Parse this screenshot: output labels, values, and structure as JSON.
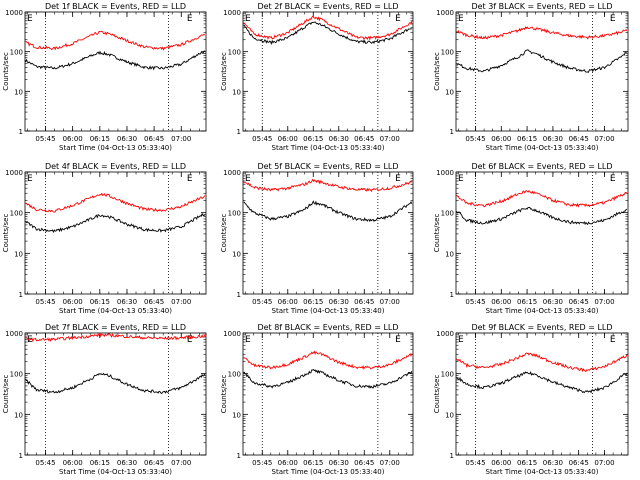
{
  "figure": {
    "background": "#ffffff",
    "event_color": "#000000",
    "lld_color": "#ff0000"
  },
  "chart_data": [
    {
      "type": "line",
      "title": "Det 1f BLACK = Events, RED = LLD",
      "xlabel": "Start Time (04-Oct-13 05:33:40)",
      "ylabel": "Counts/sec",
      "yscale": "log",
      "ylim": [
        1,
        1000
      ],
      "xlim": [
        "05:33:40",
        "07:13:40"
      ],
      "xticks": [
        "05:45",
        "06:00",
        "06:15",
        "06:30",
        "06:45",
        "07:00"
      ],
      "yticks": [
        "1",
        "10",
        "100",
        "1000"
      ],
      "vlines": [
        "05:45",
        "06:53"
      ],
      "markers": [
        {
          "label": "E",
          "x": "05:33:40"
        },
        {
          "label": "E",
          "x": "07:02"
        }
      ],
      "legend": "none",
      "grid": false,
      "x": [
        "05:34",
        "05:40",
        "05:50",
        "06:00",
        "06:10",
        "06:15",
        "06:20",
        "06:30",
        "06:40",
        "06:50",
        "07:00",
        "07:10",
        "07:13"
      ],
      "series": [
        {
          "color": "#000000",
          "values": [
            60,
            42,
            38,
            50,
            78,
            95,
            85,
            55,
            40,
            38,
            48,
            90,
            100
          ]
        },
        {
          "color": "#ff0000",
          "values": [
            170,
            130,
            120,
            160,
            250,
            310,
            280,
            190,
            130,
            120,
            150,
            240,
            270
          ]
        }
      ]
    },
    {
      "type": "line",
      "title": "Det 2f BLACK = Events, RED = LLD",
      "xlabel": "Start Time (04-Oct-13 05:33:40)",
      "ylabel": "Counts/sec",
      "yscale": "log",
      "ylim": [
        1,
        1000
      ],
      "xlim": [
        "05:33:40",
        "07:13:40"
      ],
      "xticks": [
        "05:45",
        "06:00",
        "06:15",
        "06:30",
        "06:45",
        "07:00"
      ],
      "yticks": [
        "1",
        "10",
        "100",
        "1000"
      ],
      "vlines": [
        "05:45",
        "06:53"
      ],
      "markers": [
        {
          "label": "E",
          "x": "05:33:40"
        },
        {
          "label": "E",
          "x": "07:02"
        }
      ],
      "legend": "none",
      "grid": false,
      "x": [
        "05:34",
        "05:40",
        "05:50",
        "06:00",
        "06:10",
        "06:15",
        "06:20",
        "06:30",
        "06:40",
        "06:50",
        "07:00",
        "07:10",
        "07:13"
      ],
      "series": [
        {
          "color": "#000000",
          "values": [
            450,
            220,
            170,
            220,
            420,
            560,
            470,
            280,
            180,
            170,
            210,
            350,
            400
          ]
        },
        {
          "color": "#ff0000",
          "values": [
            550,
            280,
            220,
            300,
            560,
            760,
            640,
            380,
            230,
            220,
            270,
            470,
            560
          ]
        }
      ]
    },
    {
      "type": "line",
      "title": "Det 3f BLACK = Events, RED = LLD",
      "xlabel": "Start Time (04-Oct-13 05:33:40)",
      "ylabel": "Counts/sec",
      "yscale": "log",
      "ylim": [
        1,
        1000
      ],
      "xlim": [
        "05:33:40",
        "07:13:40"
      ],
      "xticks": [
        "05:45",
        "06:00",
        "06:15",
        "06:30",
        "06:45",
        "07:00"
      ],
      "yticks": [
        "1",
        "10",
        "100",
        "1000"
      ],
      "vlines": [
        "05:45",
        "06:53"
      ],
      "markers": [
        {
          "label": "E",
          "x": "05:33:40"
        },
        {
          "label": "E",
          "x": "07:02"
        }
      ],
      "legend": "none",
      "grid": false,
      "x": [
        "05:34",
        "05:40",
        "05:50",
        "06:00",
        "06:10",
        "06:15",
        "06:20",
        "06:30",
        "06:40",
        "06:50",
        "07:00",
        "07:10",
        "07:13"
      ],
      "series": [
        {
          "color": "#000000",
          "values": [
            50,
            38,
            32,
            45,
            75,
            105,
            90,
            55,
            38,
            32,
            40,
            75,
            100
          ]
        },
        {
          "color": "#ff0000",
          "values": [
            330,
            260,
            220,
            260,
            340,
            420,
            380,
            300,
            250,
            230,
            250,
            310,
            350
          ]
        }
      ]
    },
    {
      "type": "line",
      "title": "Det 4f BLACK = Events, RED = LLD",
      "xlabel": "Start Time (04-Oct-13 05:33:40)",
      "ylabel": "Counts/sec",
      "yscale": "log",
      "ylim": [
        1,
        1000
      ],
      "xlim": [
        "05:33:40",
        "07:13:40"
      ],
      "xticks": [
        "05:45",
        "06:00",
        "06:15",
        "06:30",
        "06:45",
        "07:00"
      ],
      "yticks": [
        "1",
        "10",
        "100",
        "1000"
      ],
      "vlines": [
        "05:45",
        "06:53"
      ],
      "markers": [
        {
          "label": "E",
          "x": "05:33:40"
        },
        {
          "label": "E",
          "x": "07:02"
        }
      ],
      "legend": "none",
      "grid": false,
      "x": [
        "05:34",
        "05:40",
        "05:50",
        "06:00",
        "06:10",
        "06:15",
        "06:20",
        "06:30",
        "06:40",
        "06:50",
        "07:00",
        "07:10",
        "07:13"
      ],
      "series": [
        {
          "color": "#000000",
          "values": [
            60,
            40,
            35,
            45,
            70,
            88,
            80,
            52,
            38,
            36,
            45,
            80,
            95
          ]
        },
        {
          "color": "#ff0000",
          "values": [
            170,
            120,
            110,
            150,
            230,
            290,
            260,
            170,
            120,
            115,
            140,
            220,
            250
          ]
        }
      ]
    },
    {
      "type": "line",
      "title": "Det 5f BLACK = Events, RED = LLD",
      "xlabel": "Start Time (04-Oct-13 05:33:40)",
      "ylabel": "Counts/sec",
      "yscale": "log",
      "ylim": [
        1,
        1000
      ],
      "xlim": [
        "05:33:40",
        "07:13:40"
      ],
      "xticks": [
        "05:45",
        "06:00",
        "06:15",
        "06:30",
        "06:45",
        "07:00"
      ],
      "yticks": [
        "1",
        "10",
        "100",
        "1000"
      ],
      "vlines": [
        "05:45",
        "06:53"
      ],
      "markers": [
        {
          "label": "E",
          "x": "05:33:40"
        },
        {
          "label": "E",
          "x": "07:02"
        }
      ],
      "legend": "none",
      "grid": false,
      "x": [
        "05:34",
        "05:40",
        "05:50",
        "06:00",
        "06:10",
        "06:15",
        "06:20",
        "06:30",
        "06:40",
        "06:50",
        "07:00",
        "07:10",
        "07:13"
      ],
      "series": [
        {
          "color": "#000000",
          "values": [
            180,
            100,
            70,
            80,
            120,
            180,
            160,
            100,
            70,
            65,
            80,
            150,
            180
          ]
        },
        {
          "color": "#ff0000",
          "values": [
            600,
            420,
            360,
            400,
            500,
            620,
            560,
            430,
            370,
            360,
            400,
            520,
            580
          ]
        }
      ]
    },
    {
      "type": "line",
      "title": "Det 6f BLACK = Events, RED = LLD",
      "xlabel": "Start Time (04-Oct-13 05:33:40)",
      "ylabel": "Counts/sec",
      "yscale": "log",
      "ylim": [
        1,
        1000
      ],
      "xlim": [
        "05:33:40",
        "07:13:40"
      ],
      "xticks": [
        "05:45",
        "06:00",
        "06:15",
        "06:30",
        "06:45",
        "07:00"
      ],
      "yticks": [
        "1",
        "10",
        "100",
        "1000"
      ],
      "vlines": [
        "05:45",
        "06:53"
      ],
      "markers": [
        {
          "label": "E",
          "x": "05:33:40"
        },
        {
          "label": "E",
          "x": "07:02"
        }
      ],
      "legend": "none",
      "grid": false,
      "x": [
        "05:34",
        "05:40",
        "05:50",
        "06:00",
        "06:10",
        "06:15",
        "06:20",
        "06:30",
        "06:40",
        "06:50",
        "07:00",
        "07:10",
        "07:13"
      ],
      "series": [
        {
          "color": "#000000",
          "values": [
            110,
            65,
            55,
            70,
            110,
            130,
            115,
            75,
            58,
            55,
            65,
            105,
            120
          ]
        },
        {
          "color": "#ff0000",
          "values": [
            260,
            170,
            150,
            190,
            290,
            340,
            300,
            200,
            155,
            150,
            175,
            270,
            300
          ]
        }
      ]
    },
    {
      "type": "line",
      "title": "Det 7f BLACK = Events, RED = LLD",
      "xlabel": "Start Time (04-Oct-13 05:33:40)",
      "ylabel": "Counts/sec",
      "yscale": "log",
      "ylim": [
        1,
        1000
      ],
      "xlim": [
        "05:33:40",
        "07:13:40"
      ],
      "xticks": [
        "05:45",
        "06:00",
        "06:15",
        "06:30",
        "06:45",
        "07:00"
      ],
      "yticks": [
        "1",
        "10",
        "100",
        "1000"
      ],
      "vlines": [
        "05:45",
        "06:53"
      ],
      "markers": [
        {
          "label": "E",
          "x": "05:33:40"
        },
        {
          "label": "E",
          "x": "07:02"
        }
      ],
      "legend": "none",
      "grid": false,
      "x": [
        "05:34",
        "05:40",
        "05:50",
        "06:00",
        "06:10",
        "06:15",
        "06:20",
        "06:30",
        "06:40",
        "06:50",
        "07:00",
        "07:10",
        "07:13"
      ],
      "series": [
        {
          "color": "#000000",
          "values": [
            70,
            40,
            35,
            45,
            75,
            100,
            90,
            55,
            38,
            35,
            45,
            80,
            95
          ]
        },
        {
          "color": "#ff0000",
          "values": [
            720,
            680,
            700,
            760,
            840,
            900,
            880,
            820,
            760,
            740,
            760,
            820,
            850
          ]
        }
      ]
    },
    {
      "type": "line",
      "title": "Det 8f BLACK = Events, RED = LLD",
      "xlabel": "Start Time (04-Oct-13 05:33:40)",
      "ylabel": "Counts/sec",
      "yscale": "log",
      "ylim": [
        1,
        1000
      ],
      "xlim": [
        "05:33:40",
        "07:13:40"
      ],
      "xticks": [
        "05:45",
        "06:00",
        "06:15",
        "06:30",
        "06:45",
        "07:00"
      ],
      "yticks": [
        "1",
        "10",
        "100",
        "1000"
      ],
      "vlines": [
        "05:45",
        "06:53"
      ],
      "markers": [
        {
          "label": "E",
          "x": "05:33:40"
        },
        {
          "label": "E",
          "x": "07:02"
        }
      ],
      "legend": "none",
      "grid": false,
      "x": [
        "05:34",
        "05:40",
        "05:50",
        "06:00",
        "06:10",
        "06:15",
        "06:20",
        "06:30",
        "06:40",
        "06:50",
        "07:00",
        "07:10",
        "07:13"
      ],
      "series": [
        {
          "color": "#000000",
          "values": [
            110,
            60,
            48,
            60,
            95,
            120,
            105,
            68,
            50,
            48,
            58,
            95,
            110
          ]
        },
        {
          "color": "#ff0000",
          "values": [
            260,
            160,
            140,
            170,
            260,
            330,
            300,
            190,
            145,
            140,
            165,
            260,
            300
          ]
        }
      ]
    },
    {
      "type": "line",
      "title": "Det 9f BLACK = Events, RED = LLD",
      "xlabel": "Start Time (04-Oct-13 05:33:40)",
      "ylabel": "Counts/sec",
      "yscale": "log",
      "ylim": [
        1,
        1000
      ],
      "xlim": [
        "05:33:40",
        "07:13:40"
      ],
      "xticks": [
        "05:45",
        "06:00",
        "06:15",
        "06:30",
        "06:45",
        "07:00"
      ],
      "yticks": [
        "1",
        "10",
        "100",
        "1000"
      ],
      "vlines": [
        "05:45",
        "06:53"
      ],
      "markers": [
        {
          "label": "E",
          "x": "05:33:40"
        },
        {
          "label": "E",
          "x": "07:02"
        }
      ],
      "legend": "none",
      "grid": false,
      "x": [
        "05:34",
        "05:40",
        "05:50",
        "06:00",
        "06:10",
        "06:15",
        "06:20",
        "06:30",
        "06:40",
        "06:50",
        "07:00",
        "07:10",
        "07:13"
      ],
      "series": [
        {
          "color": "#000000",
          "values": [
            85,
            55,
            45,
            58,
            88,
            105,
            95,
            62,
            45,
            35,
            45,
            85,
            100
          ]
        },
        {
          "color": "#ff0000",
          "values": [
            230,
            160,
            140,
            170,
            250,
            310,
            280,
            190,
            140,
            120,
            150,
            240,
            280
          ]
        }
      ]
    }
  ]
}
